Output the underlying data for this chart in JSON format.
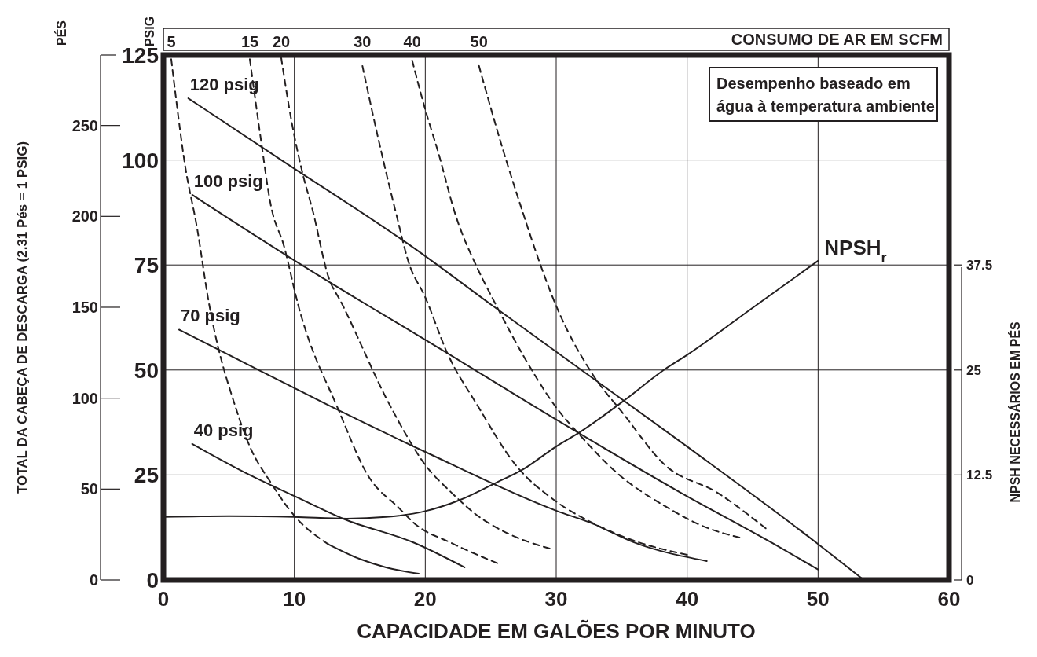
{
  "chart_data": {
    "type": "line",
    "xlabel": "CAPACIDADE EM GALÕES POR MINUTO",
    "ylabel": "PSIG",
    "y3label": "PÉS",
    "y2label": "NPSH NECESSÁRIOS EM PÉS",
    "annotations": [
      "Desempenho baseado em água à temperatura ambiente.",
      "CONSUMO DE AR EM SCFM",
      "TOTAL DA CABEÇA DE DESCARGA (2.31 Pés = 1 PSIG)"
    ],
    "xlim": [
      0,
      60
    ],
    "xticks": [
      0,
      10,
      20,
      30,
      40,
      50,
      60
    ],
    "ylim": [
      0,
      125
    ],
    "yticks": [
      0,
      25,
      50,
      75,
      100,
      125
    ],
    "y2lim": [
      0,
      62.5
    ],
    "y2ticks": [
      0,
      12.5,
      25,
      37.5
    ],
    "y3lim": [
      0,
      288.75
    ],
    "y3ticks": [
      0,
      50,
      100,
      150,
      200,
      250
    ],
    "grid": true,
    "series": [
      {
        "name": "120 psig",
        "color": "#231f20",
        "line_style": "solid",
        "x": [
          1.9,
          9,
          19.2,
          25.1,
          39.5,
          49.9,
          53.5
        ],
        "values": [
          114.7,
          100,
          78.9,
          65.4,
          32.9,
          8.8,
          0
        ]
      },
      {
        "name": "100 psig",
        "color": "#231f20",
        "line_style": "solid",
        "x": [
          2.2,
          10,
          15.6,
          20,
          30,
          39.5,
          46.5,
          50
        ],
        "values": [
          91.7,
          76.1,
          65.4,
          57.2,
          38.2,
          20.8,
          8.8,
          2.5
        ]
      },
      {
        "name": "70 psig",
        "color": "#231f20",
        "line_style": "solid",
        "x": [
          1.2,
          7.4,
          13,
          20,
          30,
          32.8,
          35.9,
          41.5
        ],
        "values": [
          59.6,
          49.8,
          41,
          30.5,
          16.5,
          13.4,
          9,
          4.5
        ]
      },
      {
        "name": "40 psig",
        "color": "#231f20",
        "line_style": "solid",
        "x": [
          2.2,
          6.6,
          10,
          13.8,
          19.2,
          23
        ],
        "values": [
          32.4,
          25,
          20,
          14.5,
          8.8,
          3
        ]
      },
      {
        "color": "#231f20",
        "line_style": "solid",
        "x": [
          12.6,
          15,
          17,
          19.5
        ],
        "values": [
          8.5,
          5,
          3,
          1.5
        ]
      },
      {
        "name": "NPSH$_{r}$",
        "color": "#231f20",
        "line_style": "solid",
        "axis": "y2",
        "x": [
          0,
          5,
          10,
          14,
          17,
          20,
          22.6,
          25.3,
          27.5,
          30,
          31.9,
          35.3,
          38.3,
          40,
          45,
          50
        ],
        "values": [
          7.5,
          7.6,
          7.5,
          7.3,
          7.5,
          8.2,
          9.5,
          11.5,
          13.2,
          15.9,
          17.7,
          21.5,
          25.1,
          26.8,
          32.4,
          38
        ]
      },
      {
        "name": "5",
        "color": "#231f20",
        "line_style": "dashed",
        "x": [
          0.6,
          1,
          1.6,
          2.6,
          3.4,
          5.6,
          6.6,
          8.2,
          10,
          12.6
        ],
        "values": [
          124,
          113.8,
          99.8,
          83.3,
          67.3,
          40.3,
          31.8,
          23.2,
          15.3,
          8.5
        ]
      },
      {
        "name": "15",
        "color": "#231f20",
        "line_style": "dashed",
        "x": [
          6.6,
          7.4,
          8.2,
          9.2,
          10.3,
          13.4,
          15.6,
          18,
          19.2,
          22,
          25.5
        ],
        "values": [
          124,
          105.9,
          89.3,
          79.6,
          65.4,
          40.3,
          25,
          17.1,
          13.4,
          8.8,
          4
        ]
      },
      {
        "name": "20",
        "color": "#231f20",
        "line_style": "dashed",
        "x": [
          9,
          9.8,
          10.6,
          11.4,
          12.6,
          13.6,
          17.4,
          20,
          22,
          24,
          26.5,
          29.5
        ],
        "values": [
          124.3,
          109,
          97.2,
          88,
          72.2,
          66,
          41,
          27.4,
          20.8,
          15.3,
          10.8,
          7.5
        ]
      },
      {
        "name": "30",
        "color": "#231f20",
        "line_style": "dashed",
        "x": [
          15.2,
          16,
          16.8,
          17.8,
          18.7,
          20,
          21.7,
          24,
          26.9,
          29.9,
          32.9,
          35.9,
          40
        ],
        "values": [
          122.4,
          110.8,
          99.8,
          86.9,
          75.9,
          67.3,
          53.9,
          41.5,
          27.4,
          18.9,
          13.4,
          9.4,
          6
        ]
      },
      {
        "name": "40",
        "color": "#231f20",
        "line_style": "dashed",
        "x": [
          19,
          20,
          21,
          22.3,
          24,
          25.1,
          28,
          29.9,
          31.9,
          34.6,
          38.3,
          41.3,
          44
        ],
        "values": [
          123.7,
          112,
          101.7,
          87,
          74.1,
          67.3,
          50.7,
          41.5,
          34.2,
          25.6,
          17.6,
          12.7,
          10.1
        ]
      },
      {
        "name": "50",
        "color": "#231f20",
        "line_style": "dashed",
        "x": [
          24.1,
          25.9,
          27.4,
          28.7,
          29.9,
          32.8,
          35.1,
          38.3,
          42.3,
          46
        ],
        "values": [
          122.4,
          102.8,
          88,
          75.9,
          66,
          48.9,
          39.7,
          27.4,
          20.8,
          12.3
        ]
      }
    ]
  }
}
